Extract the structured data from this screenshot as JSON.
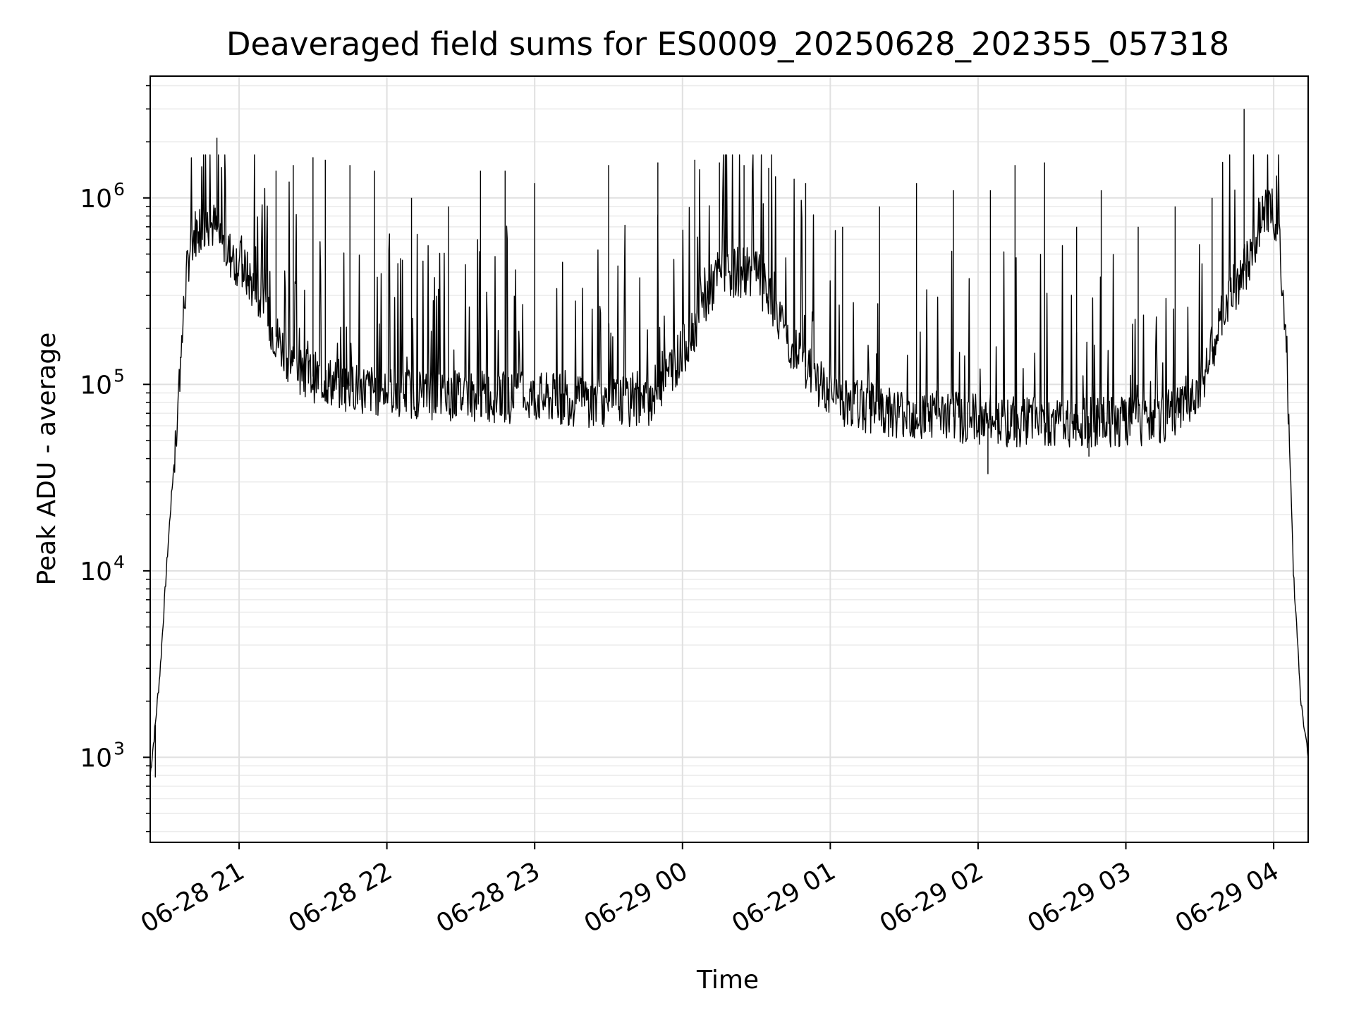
{
  "chart_data": {
    "type": "line",
    "title": "Deaveraged field sums for ES0009_20250628_202355_057318",
    "xlabel": "Time",
    "ylabel": "Peak ADU - average",
    "y_scale": "log",
    "xlim": [
      "2025-06-28 20:23:55",
      "2025-06-29 04:14:00"
    ],
    "ylim": [
      350,
      4500000
    ],
    "grid": true,
    "legend": "none",
    "line_color": "#000000",
    "x_tick_labels": [
      "06-28 21",
      "06-28 22",
      "06-28 23",
      "06-29 00",
      "06-29 01",
      "06-29 02",
      "06-29 03",
      "06-29 04"
    ],
    "x_ticks": [
      "2025-06-28 21:00",
      "2025-06-28 22:00",
      "2025-06-28 23:00",
      "2025-06-29 00:00",
      "2025-06-29 01:00",
      "2025-06-29 02:00",
      "2025-06-29 03:00",
      "2025-06-29 04:00"
    ],
    "y_ticks": [
      1000,
      10000,
      100000,
      1000000
    ],
    "y_tick_labels": [
      {
        "base": "10",
        "exp": "3"
      },
      {
        "base": "10",
        "exp": "4"
      },
      {
        "base": "10",
        "exp": "5"
      },
      {
        "base": "10",
        "exp": "6"
      }
    ],
    "series": [
      {
        "x": [
          "2025-06-28 20:23:55",
          "2025-06-28 20:26",
          "2025-06-28 20:28",
          "2025-06-28 20:30",
          "2025-06-28 20:32",
          "2025-06-28 20:34",
          "2025-06-28 20:36",
          "2025-06-28 20:38",
          "2025-06-28 20:40",
          "2025-06-28 20:42",
          "2025-06-28 20:44",
          "2025-06-28 20:46",
          "2025-06-28 20:48",
          "2025-06-28 20:50",
          "2025-06-28 20:52",
          "2025-06-28 20:54",
          "2025-06-28 20:56",
          "2025-06-28 20:58",
          "2025-06-28 21:00",
          "2025-06-28 21:05",
          "2025-06-28 21:10",
          "2025-06-28 21:15",
          "2025-06-28 21:20",
          "2025-06-28 21:25",
          "2025-06-28 21:30",
          "2025-06-28 21:35",
          "2025-06-28 21:40",
          "2025-06-28 21:45",
          "2025-06-28 21:50",
          "2025-06-28 21:55",
          "2025-06-28 22:00",
          "2025-06-28 22:10",
          "2025-06-28 22:20",
          "2025-06-28 22:30",
          "2025-06-28 22:40",
          "2025-06-28 22:50",
          "2025-06-28 23:00",
          "2025-06-28 23:15",
          "2025-06-28 23:30",
          "2025-06-28 23:45",
          "2025-06-29 00:00",
          "2025-06-29 00:15",
          "2025-06-29 00:30",
          "2025-06-29 00:45",
          "2025-06-29 01:00",
          "2025-06-29 01:15",
          "2025-06-29 01:30",
          "2025-06-29 01:45",
          "2025-06-29 02:00",
          "2025-06-29 02:15",
          "2025-06-29 02:30",
          "2025-06-29 02:45",
          "2025-06-29 03:00",
          "2025-06-29 03:10",
          "2025-06-29 03:20",
          "2025-06-29 03:30",
          "2025-06-29 03:35",
          "2025-06-29 03:40",
          "2025-06-29 03:45",
          "2025-06-29 03:50",
          "2025-06-29 03:53",
          "2025-06-29 03:56",
          "2025-06-29 03:59",
          "2025-06-29 04:02",
          "2025-06-29 04:05",
          "2025-06-29 04:08",
          "2025-06-29 04:11",
          "2025-06-29 04:14"
        ],
        "y": [
          800,
          1500,
          3000,
          8000,
          20000,
          45000,
          120000,
          300000,
          550000,
          650000,
          700000,
          720000,
          730000,
          700000,
          620000,
          550000,
          500000,
          470000,
          450000,
          350000,
          250000,
          180000,
          140000,
          120000,
          110000,
          105000,
          100000,
          98000,
          95000,
          93000,
          92000,
          90000,
          88000,
          87000,
          86000,
          85000,
          85000,
          82000,
          80000,
          78000,
          150000,
          400000,
          400000,
          150000,
          85000,
          75000,
          70000,
          68000,
          65000,
          63000,
          62000,
          62000,
          62000,
          63000,
          70000,
          100000,
          150000,
          250000,
          350000,
          450000,
          600000,
          850000,
          950000,
          700000,
          200000,
          10000,
          2000,
          1000
        ],
        "spikes": [
          {
            "x": "2025-06-28 20:51",
            "y": 2100000
          },
          {
            "x": "2025-06-28 21:15",
            "y": 1400000
          },
          {
            "x": "2025-06-28 21:22",
            "y": 1500000
          },
          {
            "x": "2025-06-28 21:30",
            "y": 1650000
          },
          {
            "x": "2025-06-28 21:35",
            "y": 1600000
          },
          {
            "x": "2025-06-28 21:45",
            "y": 1500000
          },
          {
            "x": "2025-06-28 21:55",
            "y": 1400000
          },
          {
            "x": "2025-06-28 22:10",
            "y": 1000000
          },
          {
            "x": "2025-06-28 22:25",
            "y": 900000
          },
          {
            "x": "2025-06-28 22:38",
            "y": 1400000
          },
          {
            "x": "2025-06-28 22:48",
            "y": 1400000
          },
          {
            "x": "2025-06-28 23:00",
            "y": 1200000
          },
          {
            "x": "2025-06-28 23:30",
            "y": 1500000
          },
          {
            "x": "2025-06-28 23:50",
            "y": 1550000
          },
          {
            "x": "2025-06-29 00:05",
            "y": 1600000
          },
          {
            "x": "2025-06-29 00:15",
            "y": 1550000
          },
          {
            "x": "2025-06-29 00:25",
            "y": 1500000
          },
          {
            "x": "2025-06-29 00:35",
            "y": 1450000
          },
          {
            "x": "2025-06-29 00:50",
            "y": 1200000
          },
          {
            "x": "2025-06-29 01:05",
            "y": 700000
          },
          {
            "x": "2025-06-29 01:20",
            "y": 900000
          },
          {
            "x": "2025-06-29 01:35",
            "y": 1200000
          },
          {
            "x": "2025-06-29 01:50",
            "y": 1100000
          },
          {
            "x": "2025-06-29 02:05",
            "y": 1100000
          },
          {
            "x": "2025-06-29 02:15",
            "y": 1500000
          },
          {
            "x": "2025-06-29 02:27",
            "y": 1550000
          },
          {
            "x": "2025-06-29 02:40",
            "y": 700000
          },
          {
            "x": "2025-06-29 02:50",
            "y": 1100000
          },
          {
            "x": "2025-06-29 03:05",
            "y": 700000
          },
          {
            "x": "2025-06-29 03:20",
            "y": 900000
          },
          {
            "x": "2025-06-29 03:35",
            "y": 1000000
          },
          {
            "x": "2025-06-29 03:48",
            "y": 3000000
          }
        ],
        "dips": [
          {
            "x": "2025-06-28 20:26",
            "y": 780
          },
          {
            "x": "2025-06-29 02:04",
            "y": 33000
          },
          {
            "x": "2025-06-29 02:45",
            "y": 41000
          }
        ]
      }
    ]
  }
}
